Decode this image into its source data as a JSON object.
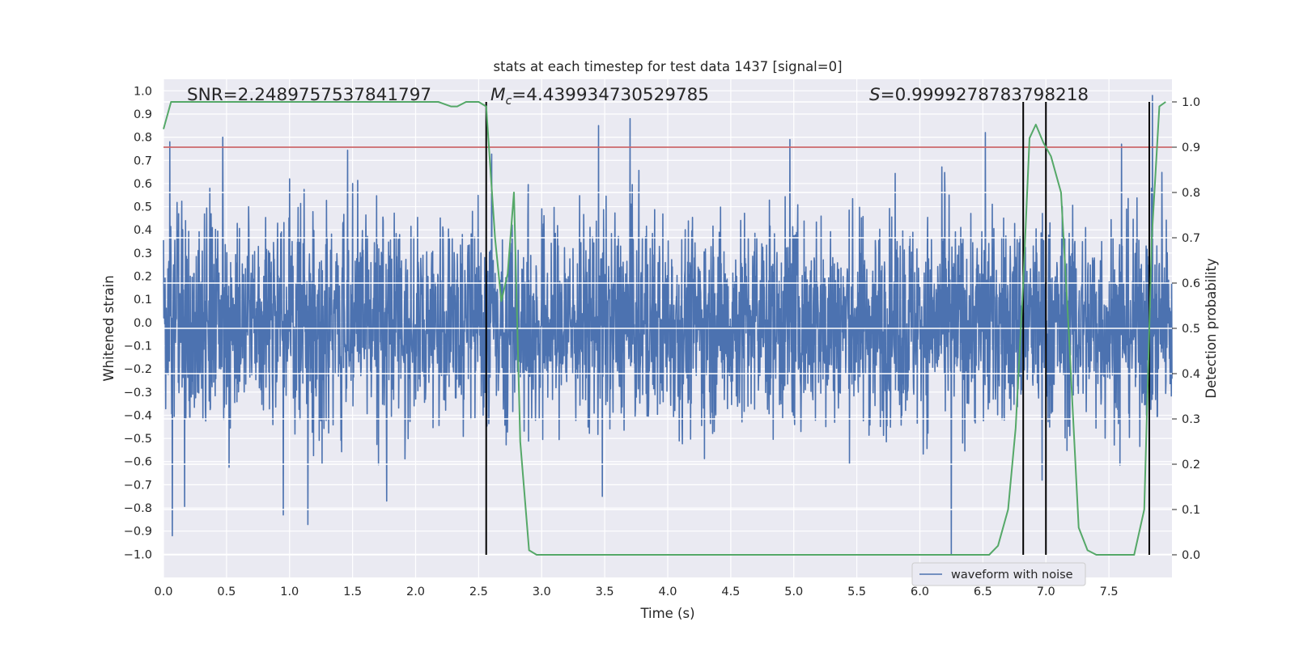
{
  "chart_data": {
    "type": "line",
    "title": "stats at each timestep for test data 1437 [signal=0]",
    "xlabel": "Time (s)",
    "ylabel": "Whitened strain",
    "y2label": "Detection probability",
    "xlim": [
      0.0,
      8.0
    ],
    "ylim": [
      -1.1,
      1.05
    ],
    "y2lim": [
      -0.05,
      1.05
    ],
    "xticks": [
      "0.0",
      "0.5",
      "1.0",
      "1.5",
      "2.0",
      "2.5",
      "3.0",
      "3.5",
      "4.0",
      "4.5",
      "5.0",
      "5.5",
      "6.0",
      "6.5",
      "7.0",
      "7.5"
    ],
    "yticks": [
      "1.0",
      "0.9",
      "0.8",
      "0.7",
      "0.6",
      "0.5",
      "0.4",
      "0.3",
      "0.2",
      "0.1",
      "0.0",
      "-0.1",
      "-0.2",
      "-0.3",
      "-0.4",
      "-0.5",
      "-0.6",
      "-0.7",
      "-0.8",
      "-0.9",
      "-1.0"
    ],
    "y2ticks": [
      "1.0",
      "0.9",
      "0.8",
      "0.7",
      "0.6",
      "0.5",
      "0.4",
      "0.3",
      "0.2",
      "0.1",
      "0.0"
    ],
    "annotations": {
      "snr": "SNR=2.2489757537841797",
      "mc_symbol": "M",
      "mc_sub": "c",
      "mc_value": "=4.439934730529785",
      "s_symbol": "S",
      "s_value": "=0.9999278783798218"
    },
    "threshold_line": {
      "y2_value": 0.9,
      "color": "#c44e52"
    },
    "vertical_lines_time_s": [
      2.56,
      6.82,
      7.0,
      7.82
    ],
    "legend": {
      "label": "waveform with noise",
      "location": "lower-right"
    },
    "series": [
      {
        "name": "waveform with noise",
        "axis": "left",
        "color": "#4c72b0",
        "x_range": [
          0.0,
          8.0
        ],
        "description_envelope": {
          "typical_max": 0.45,
          "typical_min": -0.45
        },
        "peaks": [
          {
            "x": 0.05,
            "y": 0.78
          },
          {
            "x": 0.47,
            "y": 0.8
          },
          {
            "x": 1.0,
            "y": 0.62
          },
          {
            "x": 1.5,
            "y": 0.6
          },
          {
            "x": 3.45,
            "y": 0.85
          },
          {
            "x": 3.7,
            "y": 0.88
          },
          {
            "x": 4.97,
            "y": 0.79
          },
          {
            "x": 6.52,
            "y": 0.82
          },
          {
            "x": 7.6,
            "y": 0.77
          },
          {
            "x": 0.07,
            "y": -0.92
          },
          {
            "x": 0.95,
            "y": -0.83
          },
          {
            "x": 1.77,
            "y": -0.77
          },
          {
            "x": 6.25,
            "y": -1.0
          },
          {
            "x": 3.48,
            "y": -0.75
          },
          {
            "x": 6.97,
            "y": -0.68
          }
        ]
      },
      {
        "name": "detection probability",
        "axis": "right",
        "color": "#55a868",
        "x": [
          0.0,
          0.06,
          0.5,
          1.0,
          1.5,
          2.0,
          2.18,
          2.28,
          2.33,
          2.4,
          2.5,
          2.56,
          2.63,
          2.68,
          2.73,
          2.78,
          2.83,
          2.9,
          2.96,
          3.1,
          3.5,
          3.65,
          3.8,
          4.2,
          4.6,
          5.0,
          5.5,
          5.9,
          6.05,
          6.2,
          6.4,
          6.55,
          6.62,
          6.7,
          6.76,
          6.82,
          6.87,
          6.92,
          6.98,
          7.04,
          7.12,
          7.18,
          7.26,
          7.33,
          7.4,
          7.56,
          7.63,
          7.7,
          7.78,
          7.84,
          7.9,
          7.95
        ],
        "y": [
          0.94,
          1.0,
          1.0,
          1.0,
          1.0,
          1.0,
          1.0,
          0.99,
          0.99,
          1.0,
          1.0,
          0.99,
          0.7,
          0.56,
          0.62,
          0.8,
          0.25,
          0.01,
          0.0,
          0.0,
          0.0,
          0.0,
          0.0,
          0.0,
          0.0,
          0.0,
          0.0,
          0.0,
          0.0,
          0.0,
          0.0,
          0.0,
          0.02,
          0.1,
          0.28,
          0.6,
          0.92,
          0.95,
          0.91,
          0.88,
          0.8,
          0.5,
          0.06,
          0.01,
          0.0,
          0.0,
          0.0,
          0.0,
          0.1,
          0.7,
          0.99,
          1.0
        ]
      }
    ]
  }
}
